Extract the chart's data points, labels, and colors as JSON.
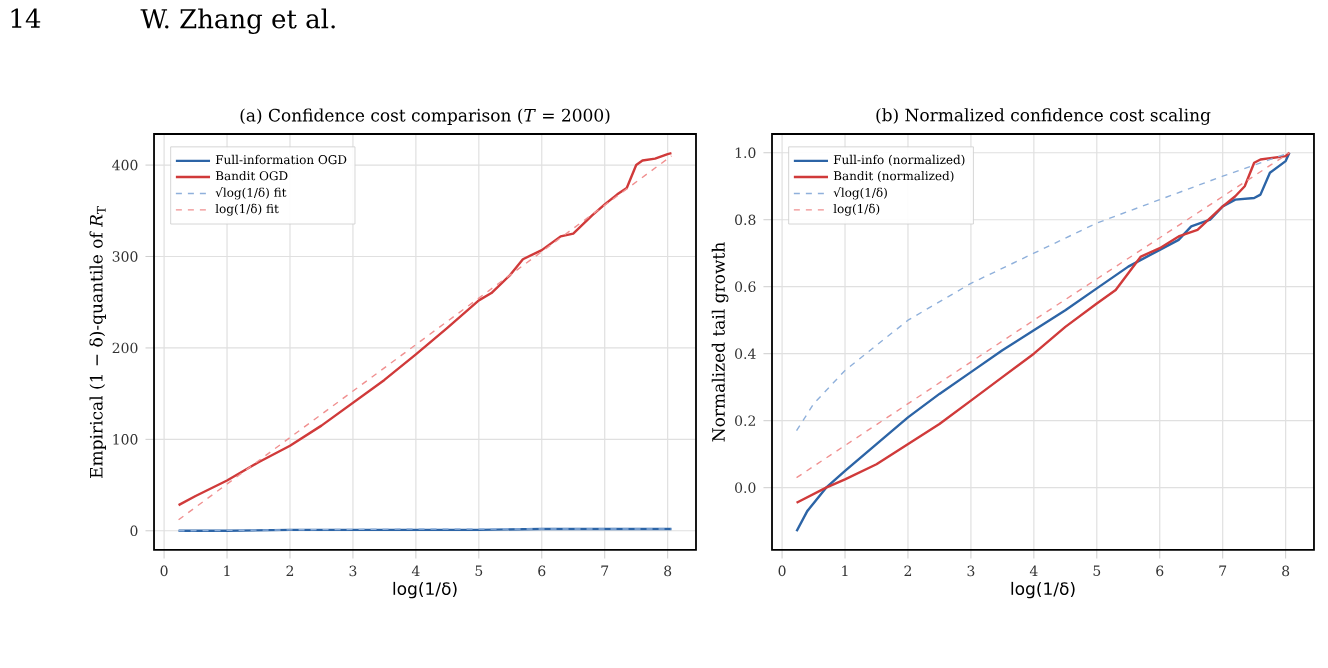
{
  "chart_data": [
    {
      "type": "line",
      "title": "(a) Confidence cost comparison (*T* = 2000)",
      "xlabel": "log(1/δ)",
      "ylabel": "Empirical (1 − δ)-quantile of *R*$_{T}$",
      "annotations": [
        "14",
        "W. Zhang et al."
      ],
      "xlim": [
        -0.16,
        8.45
      ],
      "ylim": [
        -21,
        434
      ],
      "xticks": [
        0,
        1,
        2,
        3,
        4,
        5,
        6,
        7,
        8
      ],
      "yticks": [
        0,
        100,
        200,
        300,
        400
      ],
      "grid": true,
      "legend": "top left",
      "series": [
        {
          "name": "Full-information OGD",
          "color": "#2c64a6",
          "x": [
            0.23,
            1,
            2,
            3,
            4,
            5,
            6,
            7,
            8.06
          ],
          "values": [
            0,
            0,
            1,
            1,
            1,
            1,
            2,
            2,
            2
          ]
        },
        {
          "name": "Bandit OGD",
          "color": "#d03a3a",
          "x": [
            0.23,
            0.5,
            1,
            1.5,
            2,
            2.5,
            3,
            3.5,
            4,
            4.5,
            5,
            5.2,
            5.5,
            5.7,
            6,
            6.3,
            6.5,
            6.8,
            7,
            7.2,
            7.35,
            7.5,
            7.6,
            7.8,
            8,
            8.06
          ],
          "values": [
            28,
            38,
            55,
            75,
            93,
            115,
            140,
            165,
            193,
            222,
            252,
            260,
            280,
            297,
            307,
            322,
            325,
            345,
            357,
            368,
            375,
            400,
            405,
            407,
            412,
            413
          ]
        },
        {
          "name": "√log(1/δ) fit",
          "color": "#8fb0db",
          "line_style": "dashed",
          "x": [
            0.23,
            2,
            4,
            6,
            8.06
          ],
          "values": [
            0,
            1,
            2,
            2,
            2
          ]
        },
        {
          "name": "log(1/δ) fit",
          "color": "#f09090",
          "line_style": "dashed",
          "x": [
            0.23,
            8.06
          ],
          "values": [
            12,
            410
          ]
        }
      ]
    },
    {
      "type": "line",
      "title": "(b) Normalized confidence cost scaling",
      "xlabel": "log(1/δ)",
      "ylabel": "Normalized tail growth",
      "xlim": [
        -0.16,
        8.45
      ],
      "ylim": [
        -0.186,
        1.056
      ],
      "xticks": [
        0,
        1,
        2,
        3,
        4,
        5,
        6,
        7,
        8
      ],
      "yticks": [
        {
          "value": 0,
          "label": "0.0"
        },
        {
          "value": 0.2,
          "label": "0.2"
        },
        {
          "value": 0.4,
          "label": "0.4"
        },
        {
          "value": 0.6,
          "label": "0.6"
        },
        {
          "value": 0.8,
          "label": "0.8"
        },
        {
          "value": 1,
          "label": "1.0"
        }
      ],
      "grid": true,
      "legend": "top left",
      "series": [
        {
          "name": "Full-info (normalized)",
          "color": "#2c64a6",
          "x": [
            0.23,
            0.4,
            0.7,
            1,
            1.5,
            2,
            2.5,
            3,
            3.5,
            4,
            4.5,
            5,
            5.5,
            6,
            6.3,
            6.5,
            6.8,
            7,
            7.2,
            7.5,
            7.6,
            7.75,
            8,
            8.06
          ],
          "values": [
            -0.13,
            -0.07,
            0,
            0.05,
            0.13,
            0.21,
            0.28,
            0.345,
            0.41,
            0.47,
            0.53,
            0.595,
            0.66,
            0.71,
            0.74,
            0.78,
            0.8,
            0.84,
            0.86,
            0.865,
            0.875,
            0.94,
            0.975,
            1
          ]
        },
        {
          "name": "Bandit (normalized)",
          "color": "#d03a3a",
          "x": [
            0.23,
            0.7,
            1,
            1.5,
            2,
            2.5,
            3,
            3.5,
            4,
            4.5,
            5,
            5.3,
            5.5,
            5.7,
            6,
            6.3,
            6.6,
            7,
            7.2,
            7.35,
            7.5,
            7.6,
            8,
            8.06
          ],
          "values": [
            -0.045,
            0,
            0.025,
            0.07,
            0.13,
            0.19,
            0.26,
            0.33,
            0.4,
            0.48,
            0.55,
            0.59,
            0.64,
            0.69,
            0.715,
            0.75,
            0.77,
            0.84,
            0.87,
            0.9,
            0.97,
            0.98,
            0.99,
            1
          ]
        },
        {
          "name": "√log(1/δ)",
          "color": "#8fb0db",
          "line_style": "dashed",
          "x": [
            0.23,
            0.5,
            1,
            2,
            3,
            4,
            5,
            6,
            7,
            8.06
          ],
          "values": [
            0.17,
            0.25,
            0.35,
            0.5,
            0.61,
            0.7,
            0.79,
            0.86,
            0.93,
            1
          ]
        },
        {
          "name": "log(1/δ)",
          "color": "#f09090",
          "line_style": "dashed",
          "x": [
            0.23,
            4,
            8.06
          ],
          "values": [
            0.03,
            0.5,
            1
          ]
        }
      ]
    }
  ]
}
